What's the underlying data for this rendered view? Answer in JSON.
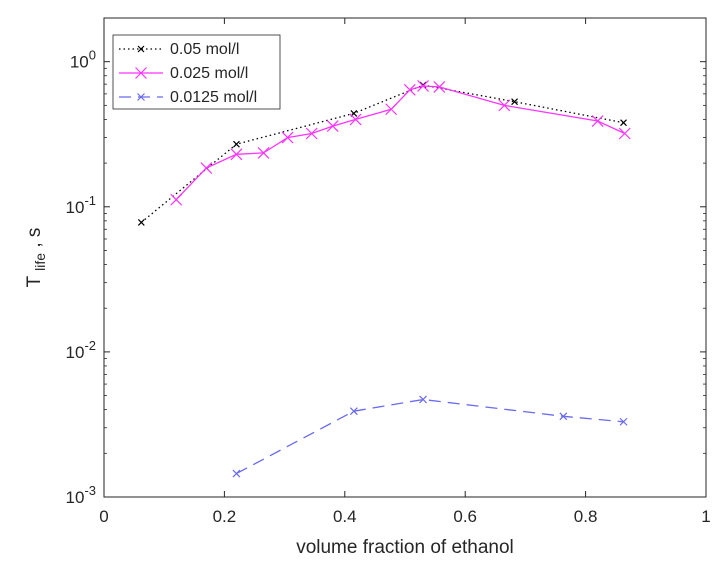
{
  "chart_data": {
    "type": "line",
    "xlabel": "volume fraction of ethanol",
    "ylabel_main": "T",
    "ylabel_sub": "life",
    "ylabel_tail": ", s",
    "xlim": [
      0,
      1
    ],
    "ylim": [
      0.001,
      2
    ],
    "yscale": "log",
    "grid": false,
    "legend_position": "top-left",
    "x_ticks": [
      {
        "value": 0,
        "label": "0"
      },
      {
        "value": 0.2,
        "label": "0.2"
      },
      {
        "value": 0.4,
        "label": "0.4"
      },
      {
        "value": 0.6,
        "label": "0.6"
      },
      {
        "value": 0.8,
        "label": "0.8"
      },
      {
        "value": 1,
        "label": "1"
      }
    ],
    "y_ticks": [
      {
        "value": 0.001,
        "base": "10",
        "exp": "-3"
      },
      {
        "value": 0.01,
        "base": "10",
        "exp": "-2"
      },
      {
        "value": 0.1,
        "base": "10",
        "exp": "-1"
      },
      {
        "value": 1,
        "base": "10",
        "exp": "0"
      }
    ],
    "series": [
      {
        "name": "0.05 mol/l",
        "color": "#000000",
        "style": "dotted",
        "marker_size": 3,
        "points": [
          {
            "x": 0.062,
            "y": 0.078
          },
          {
            "x": 0.22,
            "y": 0.27
          },
          {
            "x": 0.415,
            "y": 0.44
          },
          {
            "x": 0.53,
            "y": 0.69
          },
          {
            "x": 0.682,
            "y": 0.53
          },
          {
            "x": 0.863,
            "y": 0.38
          }
        ]
      },
      {
        "name": "0.025 mol/l",
        "color": "#ff33ff",
        "style": "solid",
        "marker_size": 5.5,
        "points": [
          {
            "x": 0.12,
            "y": 0.112
          },
          {
            "x": 0.17,
            "y": 0.185
          },
          {
            "x": 0.22,
            "y": 0.23
          },
          {
            "x": 0.265,
            "y": 0.235
          },
          {
            "x": 0.305,
            "y": 0.3
          },
          {
            "x": 0.345,
            "y": 0.32
          },
          {
            "x": 0.38,
            "y": 0.36
          },
          {
            "x": 0.418,
            "y": 0.4
          },
          {
            "x": 0.477,
            "y": 0.47
          },
          {
            "x": 0.508,
            "y": 0.64
          },
          {
            "x": 0.53,
            "y": 0.68
          },
          {
            "x": 0.557,
            "y": 0.67
          },
          {
            "x": 0.665,
            "y": 0.5
          },
          {
            "x": 0.82,
            "y": 0.39
          },
          {
            "x": 0.865,
            "y": 0.32
          }
        ]
      },
      {
        "name": "0.0125 mol/l",
        "color": "#6a6aee",
        "style": "dashed",
        "marker_size": 3.5,
        "points": [
          {
            "x": 0.22,
            "y": 0.00145
          },
          {
            "x": 0.415,
            "y": 0.0039
          },
          {
            "x": 0.53,
            "y": 0.0047
          },
          {
            "x": 0.763,
            "y": 0.0036
          },
          {
            "x": 0.863,
            "y": 0.0033
          }
        ]
      }
    ]
  }
}
